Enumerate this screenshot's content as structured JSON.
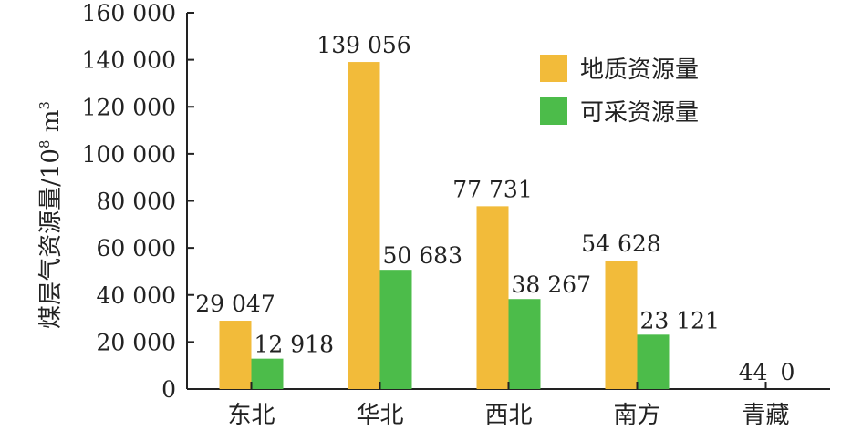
{
  "chart_data": {
    "type": "bar",
    "categories": [
      "东北",
      "华北",
      "西北",
      "南方",
      "青藏"
    ],
    "series": [
      {
        "name": "地质资源量",
        "color": "#f2bb3a",
        "values": [
          29047,
          139056,
          77731,
          54628,
          44
        ],
        "labels": [
          "29 047",
          "139 056",
          "77 731",
          "54 628",
          "44"
        ]
      },
      {
        "name": "可采资源量",
        "color": "#4cbc4a",
        "values": [
          12918,
          50683,
          38267,
          23121,
          0
        ],
        "labels": [
          "12 918",
          "50 683",
          "38 267",
          "23 121",
          "0"
        ]
      }
    ],
    "ylabel_main": "煤层气资源量/10",
    "ylabel_sup1": "8",
    "ylabel_unit": " m",
    "ylabel_sup2": "3",
    "ylim": [
      0,
      160000
    ],
    "yticks": [
      0,
      20000,
      40000,
      60000,
      80000,
      100000,
      120000,
      140000,
      160000
    ],
    "ytick_labels": [
      "0",
      "20 000",
      "40 000",
      "60 000",
      "80 000",
      "100 000",
      "120 000",
      "140 000",
      "160 000"
    ],
    "legend_position": "top-right",
    "grid": false
  }
}
